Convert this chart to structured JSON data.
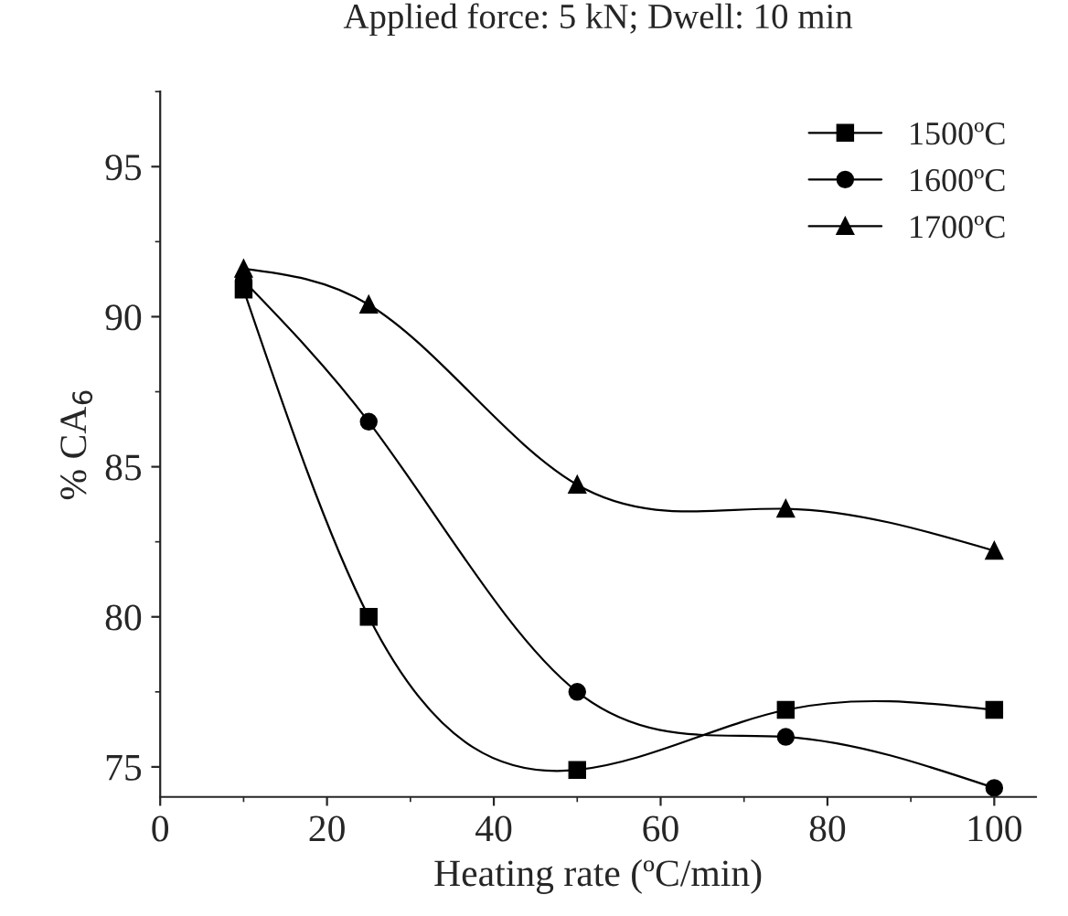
{
  "chart_data": {
    "type": "line",
    "title": "Applied force: 5 kN; Dwell: 10 min",
    "xlabel": "Heating rate (ºC/min)",
    "ylabel": "% CA$_{6}$",
    "x": [
      10,
      25,
      50,
      75,
      100
    ],
    "series": [
      {
        "name": "1500ºC",
        "color": "#000000",
        "marker": "square",
        "values": [
          90.9,
          80.0,
          74.9,
          76.9,
          76.9
        ]
      },
      {
        "name": "1600ºC",
        "color": "#000000",
        "marker": "circle",
        "values": [
          91.2,
          86.5,
          77.5,
          76.0,
          74.3
        ]
      },
      {
        "name": "1700ºC",
        "color": "#000000",
        "marker": "triangle",
        "values": [
          91.6,
          90.4,
          84.4,
          83.6,
          82.2
        ]
      }
    ],
    "xlim": [
      0,
      105
    ],
    "xticks": [
      0,
      20,
      40,
      60,
      80,
      100
    ],
    "ylim": [
      74,
      97.5
    ],
    "yticks": [
      75,
      80,
      85,
      90,
      95
    ],
    "legend": "top right",
    "grid": false,
    "line_style": "solid"
  }
}
